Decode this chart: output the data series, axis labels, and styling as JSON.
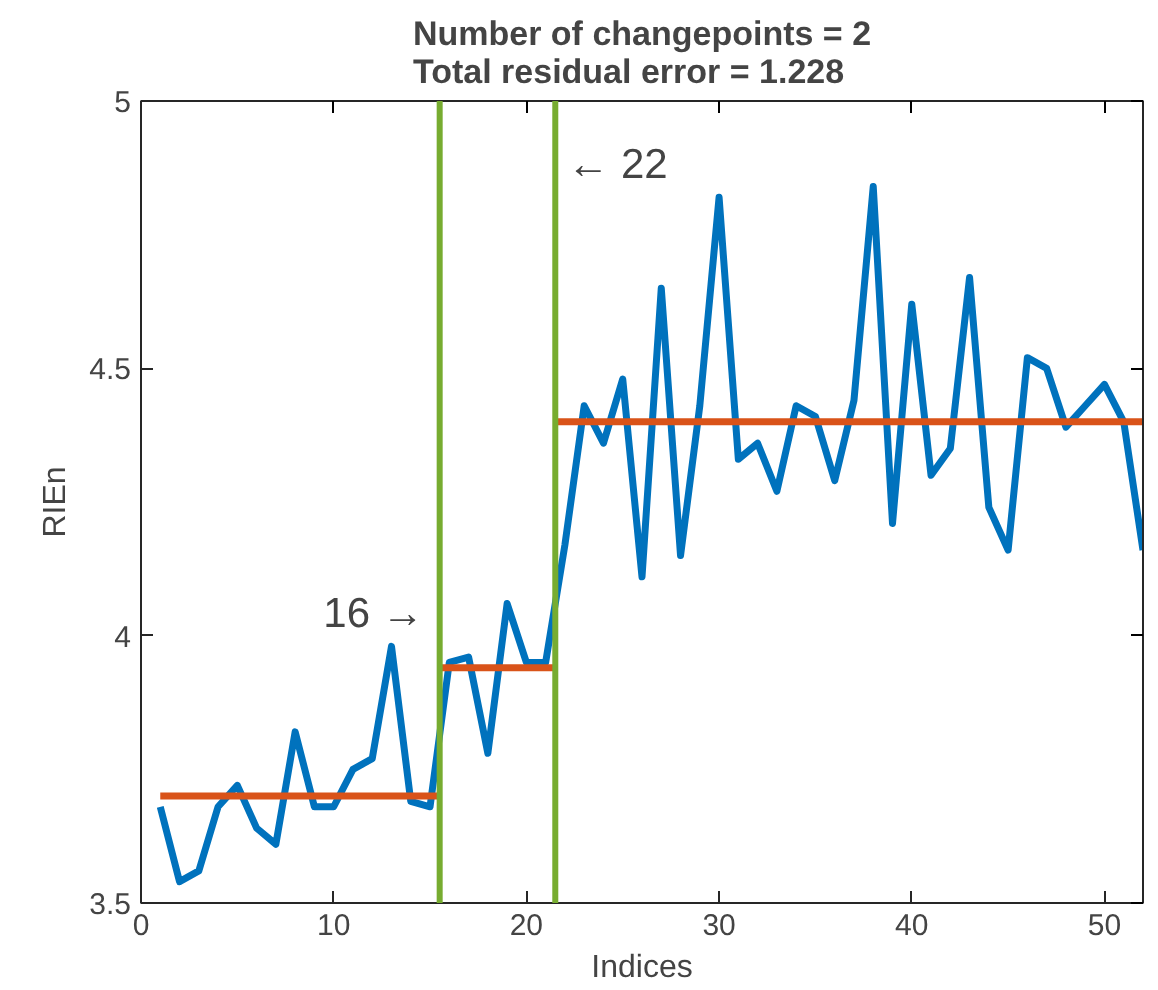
{
  "chart_data": {
    "type": "line",
    "title": "Number of changepoints = 2\nTotal residual error = 1.228",
    "xlabel": "Indices",
    "ylabel": "RIEn",
    "x": [
      1,
      2,
      3,
      4,
      5,
      6,
      7,
      8,
      9,
      10,
      11,
      12,
      13,
      14,
      15,
      16,
      17,
      18,
      19,
      20,
      21,
      22,
      23,
      24,
      25,
      26,
      27,
      28,
      29,
      30,
      31,
      32,
      33,
      34,
      35,
      36,
      37,
      38,
      39,
      40,
      41,
      42,
      43,
      44,
      45,
      46,
      47,
      48,
      49,
      50,
      51,
      52
    ],
    "series": [
      {
        "color": "#0072bd",
        "values": [
          3.68,
          3.54,
          3.56,
          3.68,
          3.72,
          3.64,
          3.61,
          3.82,
          3.68,
          3.68,
          3.75,
          3.77,
          3.98,
          3.69,
          3.68,
          3.95,
          3.96,
          3.78,
          4.06,
          3.95,
          3.95,
          4.17,
          4.43,
          4.36,
          4.48,
          4.11,
          4.65,
          4.15,
          4.43,
          4.82,
          4.33,
          4.36,
          4.27,
          4.43,
          4.41,
          4.29,
          4.44,
          4.84,
          4.21,
          4.62,
          4.3,
          4.35,
          4.67,
          4.24,
          4.16,
          4.52,
          4.5,
          4.39,
          4.43,
          4.47,
          4.4,
          4.16
        ]
      },
      {
        "color": "#d95319",
        "x": [
          1,
          15.5
        ],
        "values": [
          3.7,
          3.7
        ]
      },
      {
        "color": "#d95319",
        "x": [
          15.5,
          21.5
        ],
        "values": [
          3.94,
          3.94
        ]
      },
      {
        "color": "#d95319",
        "x": [
          21.5,
          52
        ],
        "values": [
          4.4,
          4.4
        ]
      }
    ],
    "ref_lines": [
      {
        "axis": "x",
        "value": 15.5,
        "color": "#77ac30"
      },
      {
        "axis": "x",
        "value": 21.5,
        "color": "#77ac30"
      }
    ],
    "annotations": [
      {
        "text": "16 →",
        "x": 15.5,
        "y": 4.04
      },
      {
        "text": "← 22",
        "x": 21.5,
        "y": 4.88
      }
    ],
    "xlim": [
      0,
      52
    ],
    "xticks": [
      0,
      10,
      20,
      30,
      40,
      50
    ],
    "ylim": [
      3.5,
      5
    ],
    "yticks": [
      3.5,
      4,
      4.5,
      5
    ],
    "marker": "none"
  }
}
